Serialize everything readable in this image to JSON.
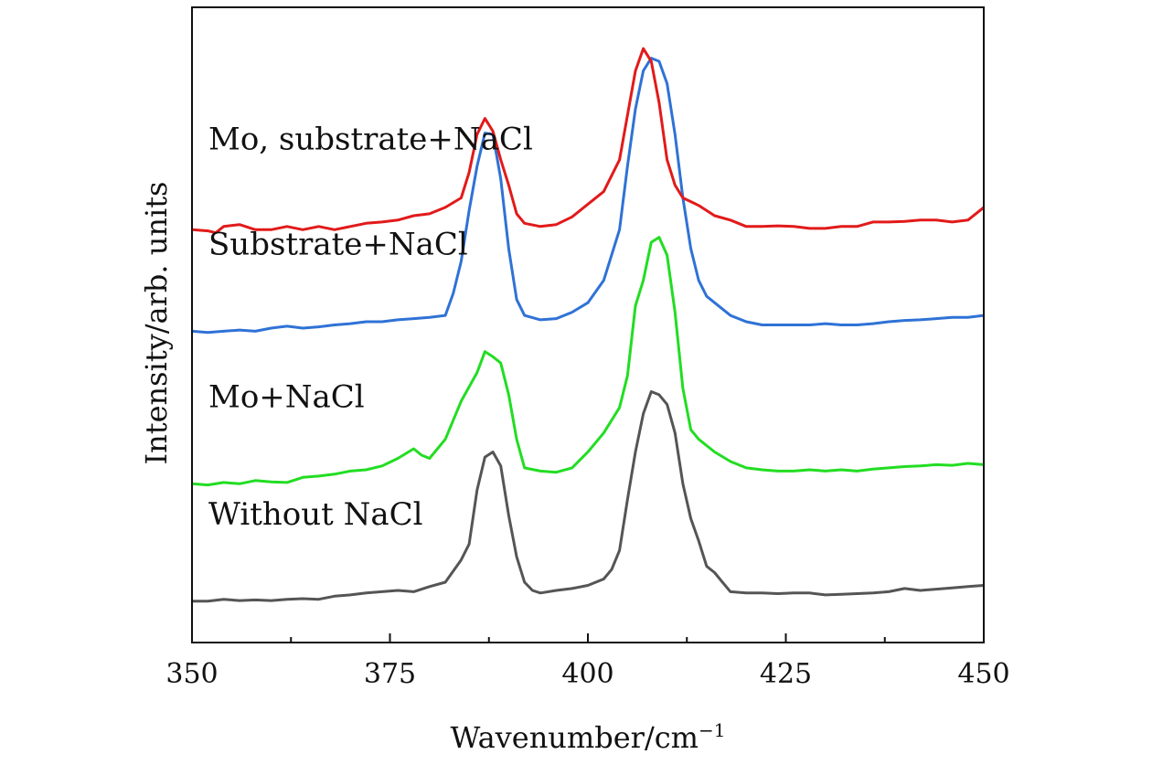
{
  "chart_data": {
    "type": "line",
    "title": "",
    "xlabel": "Wavenumber/cm",
    "xlabel_sup": "−1",
    "ylabel": "Intensity/arb. units",
    "xlim": [
      350,
      450
    ],
    "ylim": [
      0,
      10
    ],
    "x_ticks": [
      350,
      375,
      400,
      425,
      450
    ],
    "x_tick_labels": [
      "350",
      "375",
      "400",
      "425",
      "450"
    ],
    "x_minor_ticks": [
      362.5,
      387.5,
      412.5,
      437.5
    ],
    "y_ticks_visible": false,
    "grid": false,
    "legend": "inline labels above each trace",
    "series": [
      {
        "name": "Without NaCl",
        "color": "#555555",
        "points": [
          [
            350,
            0.65
          ],
          [
            352,
            0.65
          ],
          [
            354,
            0.68
          ],
          [
            356,
            0.66
          ],
          [
            358,
            0.67
          ],
          [
            360,
            0.66
          ],
          [
            362,
            0.68
          ],
          [
            364,
            0.69
          ],
          [
            366,
            0.68
          ],
          [
            368,
            0.73
          ],
          [
            370,
            0.75
          ],
          [
            372,
            0.78
          ],
          [
            374,
            0.8
          ],
          [
            376,
            0.82
          ],
          [
            378,
            0.8
          ],
          [
            380,
            0.88
          ],
          [
            382,
            0.95
          ],
          [
            384,
            1.3
          ],
          [
            385,
            1.55
          ],
          [
            386,
            2.4
          ],
          [
            387,
            2.92
          ],
          [
            388,
            3.0
          ],
          [
            389,
            2.78
          ],
          [
            390,
            2.0
          ],
          [
            391,
            1.35
          ],
          [
            392,
            0.95
          ],
          [
            393,
            0.82
          ],
          [
            394,
            0.78
          ],
          [
            396,
            0.82
          ],
          [
            398,
            0.85
          ],
          [
            400,
            0.9
          ],
          [
            402,
            1.0
          ],
          [
            403,
            1.15
          ],
          [
            404,
            1.45
          ],
          [
            405,
            2.25
          ],
          [
            406,
            3.0
          ],
          [
            407,
            3.6
          ],
          [
            408,
            3.95
          ],
          [
            409,
            3.9
          ],
          [
            410,
            3.75
          ],
          [
            411,
            3.3
          ],
          [
            412,
            2.5
          ],
          [
            413,
            1.95
          ],
          [
            414,
            1.6
          ],
          [
            415,
            1.2
          ],
          [
            416,
            1.1
          ],
          [
            417,
            0.95
          ],
          [
            418,
            0.8
          ],
          [
            420,
            0.78
          ],
          [
            422,
            0.78
          ],
          [
            424,
            0.77
          ],
          [
            426,
            0.78
          ],
          [
            428,
            0.78
          ],
          [
            430,
            0.75
          ],
          [
            432,
            0.76
          ],
          [
            434,
            0.77
          ],
          [
            436,
            0.78
          ],
          [
            438,
            0.8
          ],
          [
            440,
            0.85
          ],
          [
            442,
            0.82
          ],
          [
            444,
            0.84
          ],
          [
            446,
            0.86
          ],
          [
            448,
            0.88
          ],
          [
            450,
            0.9
          ]
        ]
      },
      {
        "name": "Mo+NaCl",
        "color": "#22dd22",
        "points": [
          [
            350,
            2.5
          ],
          [
            352,
            2.48
          ],
          [
            354,
            2.52
          ],
          [
            356,
            2.5
          ],
          [
            358,
            2.55
          ],
          [
            360,
            2.53
          ],
          [
            362,
            2.52
          ],
          [
            364,
            2.6
          ],
          [
            366,
            2.62
          ],
          [
            368,
            2.65
          ],
          [
            370,
            2.7
          ],
          [
            372,
            2.72
          ],
          [
            374,
            2.78
          ],
          [
            376,
            2.9
          ],
          [
            378,
            3.05
          ],
          [
            379,
            2.95
          ],
          [
            380,
            2.9
          ],
          [
            382,
            3.2
          ],
          [
            384,
            3.8
          ],
          [
            386,
            4.25
          ],
          [
            387,
            4.58
          ],
          [
            388,
            4.5
          ],
          [
            389,
            4.4
          ],
          [
            390,
            3.9
          ],
          [
            391,
            3.2
          ],
          [
            392,
            2.75
          ],
          [
            394,
            2.7
          ],
          [
            396,
            2.68
          ],
          [
            398,
            2.75
          ],
          [
            400,
            3.0
          ],
          [
            402,
            3.3
          ],
          [
            404,
            3.7
          ],
          [
            405,
            4.2
          ],
          [
            406,
            5.3
          ],
          [
            407,
            5.7
          ],
          [
            408,
            6.3
          ],
          [
            409,
            6.38
          ],
          [
            410,
            6.1
          ],
          [
            411,
            5.2
          ],
          [
            412,
            4.0
          ],
          [
            413,
            3.35
          ],
          [
            414,
            3.2
          ],
          [
            416,
            3.0
          ],
          [
            418,
            2.85
          ],
          [
            420,
            2.75
          ],
          [
            422,
            2.72
          ],
          [
            424,
            2.7
          ],
          [
            426,
            2.7
          ],
          [
            428,
            2.72
          ],
          [
            430,
            2.7
          ],
          [
            432,
            2.72
          ],
          [
            434,
            2.7
          ],
          [
            436,
            2.73
          ],
          [
            438,
            2.75
          ],
          [
            440,
            2.77
          ],
          [
            442,
            2.78
          ],
          [
            444,
            2.8
          ],
          [
            446,
            2.79
          ],
          [
            448,
            2.82
          ],
          [
            450,
            2.8
          ]
        ]
      },
      {
        "name": "Substrate+NaCl",
        "color": "#2f72d6",
        "points": [
          [
            350,
            4.9
          ],
          [
            352,
            4.88
          ],
          [
            354,
            4.9
          ],
          [
            356,
            4.92
          ],
          [
            358,
            4.9
          ],
          [
            360,
            4.95
          ],
          [
            362,
            4.98
          ],
          [
            364,
            4.95
          ],
          [
            366,
            4.97
          ],
          [
            368,
            5.0
          ],
          [
            370,
            5.02
          ],
          [
            372,
            5.05
          ],
          [
            374,
            5.05
          ],
          [
            376,
            5.08
          ],
          [
            378,
            5.1
          ],
          [
            380,
            5.12
          ],
          [
            382,
            5.15
          ],
          [
            383,
            5.5
          ],
          [
            384,
            6.0
          ],
          [
            385,
            6.8
          ],
          [
            386,
            7.5
          ],
          [
            387,
            8.02
          ],
          [
            388,
            8.0
          ],
          [
            389,
            7.3
          ],
          [
            390,
            6.2
          ],
          [
            391,
            5.4
          ],
          [
            392,
            5.15
          ],
          [
            394,
            5.08
          ],
          [
            396,
            5.1
          ],
          [
            398,
            5.2
          ],
          [
            400,
            5.35
          ],
          [
            402,
            5.7
          ],
          [
            404,
            6.5
          ],
          [
            405,
            7.5
          ],
          [
            406,
            8.4
          ],
          [
            407,
            9.0
          ],
          [
            408,
            9.2
          ],
          [
            409,
            9.15
          ],
          [
            410,
            8.8
          ],
          [
            411,
            8.0
          ],
          [
            412,
            7.0
          ],
          [
            413,
            6.2
          ],
          [
            414,
            5.7
          ],
          [
            415,
            5.45
          ],
          [
            416,
            5.35
          ],
          [
            418,
            5.15
          ],
          [
            420,
            5.05
          ],
          [
            422,
            5.0
          ],
          [
            424,
            5.0
          ],
          [
            426,
            5.0
          ],
          [
            428,
            5.0
          ],
          [
            430,
            5.02
          ],
          [
            432,
            5.0
          ],
          [
            434,
            5.0
          ],
          [
            436,
            5.02
          ],
          [
            438,
            5.05
          ],
          [
            440,
            5.07
          ],
          [
            442,
            5.08
          ],
          [
            444,
            5.1
          ],
          [
            446,
            5.12
          ],
          [
            448,
            5.12
          ],
          [
            450,
            5.15
          ]
        ]
      },
      {
        "name": "Mo, substrate+NaCl",
        "color": "#e21a1a",
        "points": [
          [
            350,
            6.5
          ],
          [
            352,
            6.48
          ],
          [
            353,
            6.45
          ],
          [
            354,
            6.55
          ],
          [
            356,
            6.58
          ],
          [
            358,
            6.5
          ],
          [
            360,
            6.5
          ],
          [
            362,
            6.55
          ],
          [
            364,
            6.5
          ],
          [
            366,
            6.55
          ],
          [
            368,
            6.5
          ],
          [
            370,
            6.55
          ],
          [
            372,
            6.6
          ],
          [
            374,
            6.62
          ],
          [
            376,
            6.65
          ],
          [
            378,
            6.72
          ],
          [
            380,
            6.75
          ],
          [
            382,
            6.85
          ],
          [
            384,
            7.0
          ],
          [
            385,
            7.4
          ],
          [
            386,
            8.0
          ],
          [
            387,
            8.25
          ],
          [
            388,
            8.05
          ],
          [
            389,
            7.6
          ],
          [
            390,
            7.2
          ],
          [
            391,
            6.75
          ],
          [
            392,
            6.6
          ],
          [
            394,
            6.55
          ],
          [
            396,
            6.58
          ],
          [
            398,
            6.7
          ],
          [
            400,
            6.9
          ],
          [
            402,
            7.1
          ],
          [
            404,
            7.6
          ],
          [
            405,
            8.3
          ],
          [
            406,
            9.0
          ],
          [
            407,
            9.35
          ],
          [
            408,
            9.15
          ],
          [
            409,
            8.5
          ],
          [
            410,
            7.6
          ],
          [
            411,
            7.2
          ],
          [
            412,
            7.0
          ],
          [
            414,
            6.88
          ],
          [
            416,
            6.72
          ],
          [
            418,
            6.65
          ],
          [
            420,
            6.55
          ],
          [
            422,
            6.55
          ],
          [
            424,
            6.56
          ],
          [
            426,
            6.55
          ],
          [
            428,
            6.52
          ],
          [
            430,
            6.52
          ],
          [
            432,
            6.55
          ],
          [
            434,
            6.55
          ],
          [
            436,
            6.62
          ],
          [
            438,
            6.62
          ],
          [
            440,
            6.63
          ],
          [
            442,
            6.65
          ],
          [
            444,
            6.65
          ],
          [
            446,
            6.62
          ],
          [
            448,
            6.65
          ],
          [
            450,
            6.85
          ]
        ]
      }
    ]
  }
}
